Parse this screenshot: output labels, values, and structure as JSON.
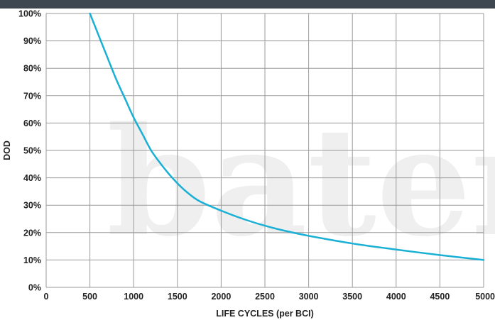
{
  "chart_data": {
    "type": "line",
    "title": "",
    "xlabel": "LIFE CYCLES (per BCI)",
    "ylabel": "DOD",
    "xlim": [
      0,
      5000
    ],
    "ylim": [
      0,
      100
    ],
    "x_ticks": [
      0,
      500,
      1000,
      1500,
      2000,
      2500,
      3000,
      3500,
      4000,
      4500,
      5000
    ],
    "y_ticks": [
      0,
      10,
      20,
      30,
      40,
      50,
      60,
      70,
      80,
      90,
      100
    ],
    "y_tick_labels": [
      "0%",
      "10%",
      "20%",
      "30%",
      "40%",
      "50%",
      "60%",
      "70%",
      "80%",
      "90%",
      "100%"
    ],
    "grid": true,
    "series": [
      {
        "color": "#1ab0d6",
        "x": [
          500,
          600,
          700,
          800,
          900,
          1000,
          1100,
          1200,
          1300,
          1400,
          1500,
          1600,
          1750,
          2000,
          2250,
          2500,
          2750,
          3000,
          3500,
          4000,
          4500,
          5000
        ],
        "y": [
          100,
          92,
          84,
          76,
          69,
          62,
          56,
          50,
          45.5,
          41.5,
          38,
          35,
          31.5,
          28,
          25,
          22.5,
          20.5,
          18.8,
          16,
          13.8,
          11.8,
          10
        ]
      }
    ],
    "watermark": "bateria"
  }
}
